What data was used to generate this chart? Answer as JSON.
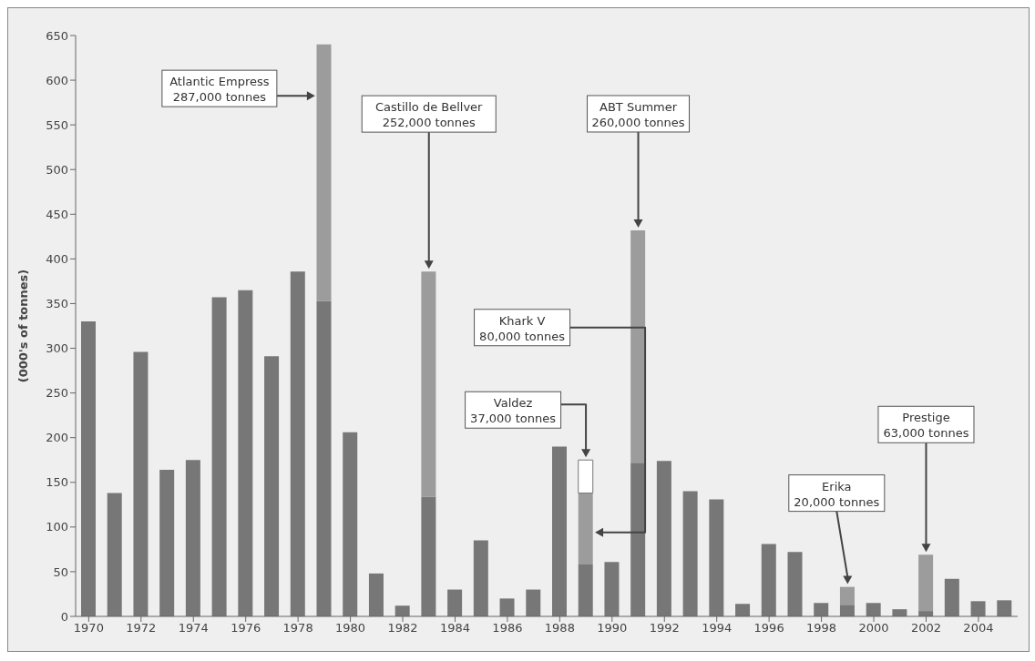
{
  "chart_data": {
    "type": "bar",
    "stacked": true,
    "ylabel": "(000's of tonnes)",
    "x": [
      1970,
      1971,
      1972,
      1973,
      1974,
      1975,
      1976,
      1977,
      1978,
      1979,
      1980,
      1981,
      1982,
      1983,
      1984,
      1985,
      1986,
      1987,
      1988,
      1989,
      1990,
      1991,
      1992,
      1993,
      1994,
      1995,
      1996,
      1997,
      1998,
      1999,
      2000,
      2001,
      2002,
      2003,
      2004,
      2005
    ],
    "series": [
      {
        "color": "#777777",
        "values": [
          330,
          138,
          296,
          164,
          175,
          357,
          365,
          291,
          386,
          353,
          206,
          48,
          12,
          134,
          30,
          85,
          20,
          30,
          190,
          58,
          61,
          172,
          174,
          140,
          131,
          14,
          81,
          72,
          15,
          13,
          15,
          8,
          6,
          42,
          17,
          18
        ]
      },
      {
        "color": "#9c9c9c",
        "values": [
          null,
          null,
          null,
          null,
          null,
          null,
          null,
          null,
          null,
          287,
          null,
          null,
          null,
          252,
          null,
          null,
          null,
          null,
          null,
          80,
          null,
          260,
          null,
          null,
          null,
          null,
          null,
          null,
          null,
          20,
          null,
          null,
          63,
          null,
          null,
          null
        ]
      },
      {
        "color": "#ffffff",
        "values": [
          null,
          null,
          null,
          null,
          null,
          null,
          null,
          null,
          null,
          null,
          null,
          null,
          null,
          null,
          null,
          null,
          null,
          null,
          null,
          37,
          null,
          null,
          null,
          null,
          null,
          null,
          null,
          null,
          null,
          null,
          null,
          null,
          null,
          null,
          null,
          null
        ]
      }
    ],
    "xlim": [
      1969.5,
      2005.5
    ],
    "xticks": [
      1970,
      1972,
      1974,
      1976,
      1978,
      1980,
      1982,
      1984,
      1986,
      1988,
      1990,
      1992,
      1994,
      1996,
      1998,
      2000,
      2002,
      2004
    ],
    "ylim": [
      0,
      650
    ],
    "yticks": [
      0,
      50,
      100,
      150,
      200,
      250,
      300,
      350,
      400,
      450,
      500,
      550,
      600,
      650
    ],
    "annotations": [
      "Atlantic Empress\n287,000 tonnes",
      "Castillo de Bellver\n252,000 tonnes",
      "ABT Summer\n260,000 tonnes",
      "Khark V\n80,000 tonnes",
      "Valdez\n37,000 tonnes",
      "Erika\n20,000 tonnes",
      "Prestige\n63,000 tonnes"
    ]
  }
}
